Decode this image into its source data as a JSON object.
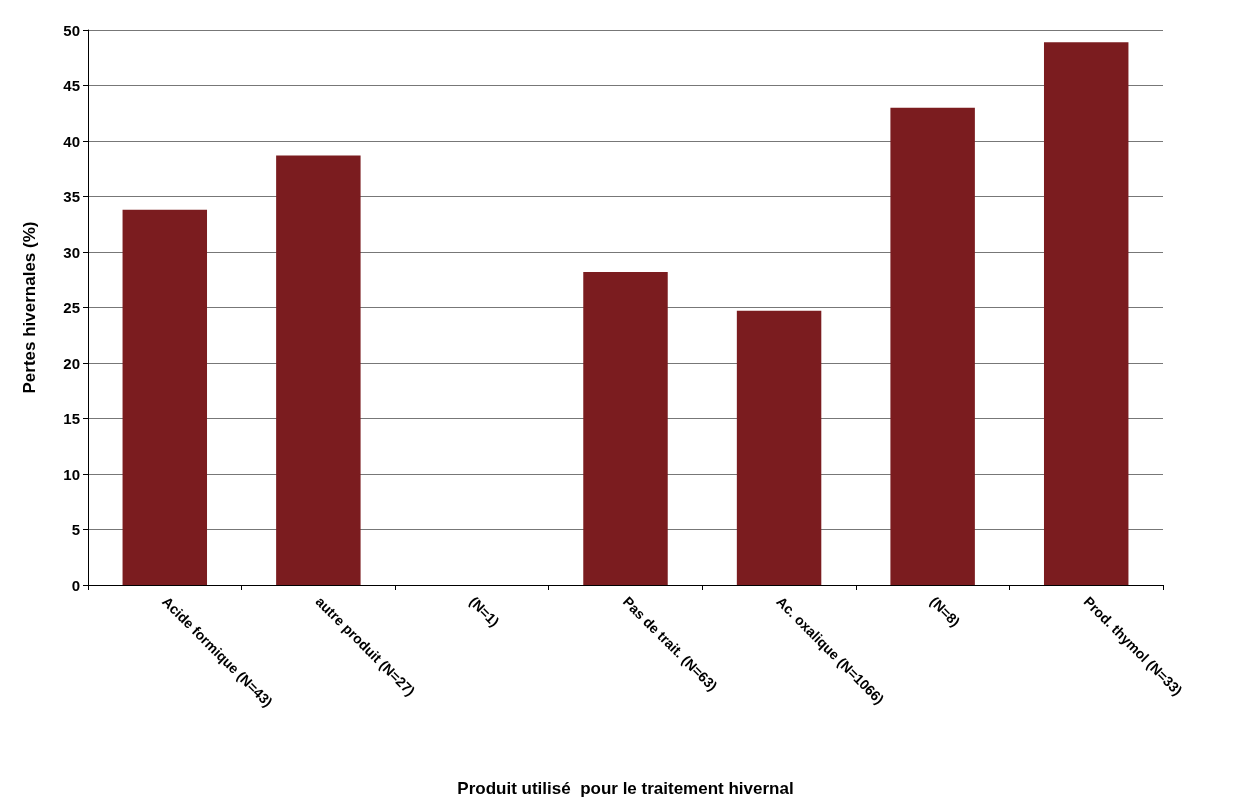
{
  "chart_data": {
    "type": "bar",
    "xlabel": "Produit utilisé  pour le traitement hivernal",
    "ylabel": "Pertes hivernales (%)",
    "categories": [
      "Acide formique (N=43)",
      "autre produit (N=27)",
      "(N=1)",
      "Pas de trait. (N=63)",
      "Ac. oxalique (N=1066)",
      "(N=8)",
      "Prod. thymol (N=33)"
    ],
    "values": [
      33.8,
      38.7,
      0,
      28.2,
      24.7,
      43.0,
      48.9
    ],
    "color": "#7b1c1f",
    "ylim": [
      0,
      50
    ],
    "yticks": [
      0,
      5,
      10,
      15,
      20,
      25,
      30,
      35,
      40,
      45,
      50
    ],
    "grid": "y"
  }
}
